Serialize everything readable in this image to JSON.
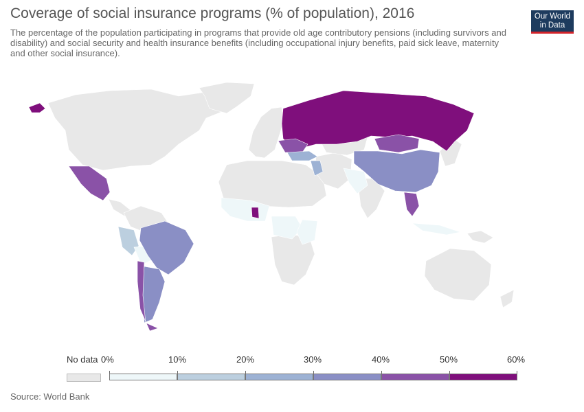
{
  "header": {
    "title": "Coverage of social insurance programs (% of population), 2016",
    "subtitle": "The percentage of the population participating in programs that provide old age contributory pensions (including survivors and disability) and social security and health insurance benefits (including occupational injury benefits, paid sick leave, maternity and other social insurance)."
  },
  "logo": {
    "line1": "Our World",
    "line2": "in Data"
  },
  "legend": {
    "no_data_label": "No data",
    "no_data_color": "#e8e8e8",
    "bins": [
      {
        "from": "0%",
        "to": "10%",
        "color": "#eef7f9"
      },
      {
        "from": "10%",
        "to": "20%",
        "color": "#bccfdf"
      },
      {
        "from": "20%",
        "to": "30%",
        "color": "#9db2d4"
      },
      {
        "from": "30%",
        "to": "40%",
        "color": "#8a8fc5"
      },
      {
        "from": "40%",
        "to": "50%",
        "color": "#8a52a7"
      },
      {
        "from": "50%",
        "to": "60%",
        "color": "#7f0f7c"
      }
    ],
    "tick_labels": [
      "0%",
      "10%",
      "20%",
      "30%",
      "40%",
      "50%",
      "60%"
    ]
  },
  "source": "Source: World Bank",
  "map": {
    "year": 2016,
    "no_data_color": "#e8e8e8",
    "highlighted_regions": [
      {
        "region": "Russia",
        "bin": "50%-60%"
      },
      {
        "region": "Alaska",
        "bin": "50%-60%"
      },
      {
        "region": "Ghana",
        "bin": "50%-60%"
      },
      {
        "region": "Mexico",
        "bin": "40%-50%"
      },
      {
        "region": "Thailand",
        "bin": "40%-50%"
      },
      {
        "region": "Mongolia",
        "bin": "40%-50%"
      },
      {
        "region": "Chile",
        "bin": "40%-50%"
      },
      {
        "region": "China",
        "bin": "30%-40%"
      },
      {
        "region": "Brazil",
        "bin": "30%-40%"
      },
      {
        "region": "Argentina",
        "bin": "30%-40%"
      },
      {
        "region": "Iraq",
        "bin": "20%-30%"
      },
      {
        "region": "Turkey",
        "bin": "20%-30%"
      },
      {
        "region": "Peru",
        "bin": "10%-20%"
      },
      {
        "region": "Bolivia",
        "bin": "0%-10%"
      },
      {
        "region": "West Africa",
        "bin": "0%-10%"
      },
      {
        "region": "Central Africa",
        "bin": "0%-10%"
      },
      {
        "region": "East Africa",
        "bin": "0%-10%"
      },
      {
        "region": "India",
        "bin": "0%-10%"
      },
      {
        "region": "Indonesia",
        "bin": "0%-10%"
      }
    ]
  }
}
